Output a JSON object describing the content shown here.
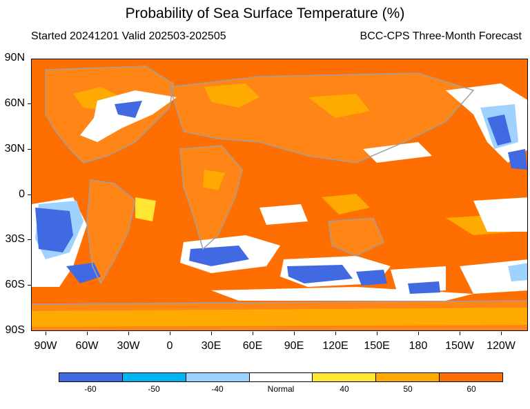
{
  "title": "Probability of Sea Surface Temperature (%)",
  "subtitle_left": "Started 20241201  Valid 202503-202505",
  "subtitle_right": "BCC-CPS Three-Month Forecast",
  "lat_labels": [
    "90N",
    "60N",
    "30N",
    "0",
    "30S",
    "60S",
    "90S"
  ],
  "lon_labels": [
    "90W",
    "60W",
    "30W",
    "0",
    "30E",
    "60E",
    "90E",
    "120E",
    "150E",
    "180",
    "150W",
    "120W"
  ],
  "legend": {
    "categories": [
      {
        "label": "-60",
        "color": "#4169e1"
      },
      {
        "label": "-50",
        "color": "#00b4f0"
      },
      {
        "label": "-40",
        "color": "#a0d2ff"
      },
      {
        "label": "Normal",
        "color": "#ffffff"
      },
      {
        "label": "40",
        "color": "#ffe632"
      },
      {
        "label": "50",
        "color": "#ffaa00"
      },
      {
        "label": "60",
        "color": "#ff6e00"
      }
    ]
  },
  "colors": {
    "warm_dominant": "#ff6e00",
    "coastline": "#a0a0a0"
  },
  "map_extent": {
    "lon_min": -105,
    "lon_max": -60,
    "wraps_past_dateline": true,
    "lat_min": -90,
    "lat_max": 90
  }
}
